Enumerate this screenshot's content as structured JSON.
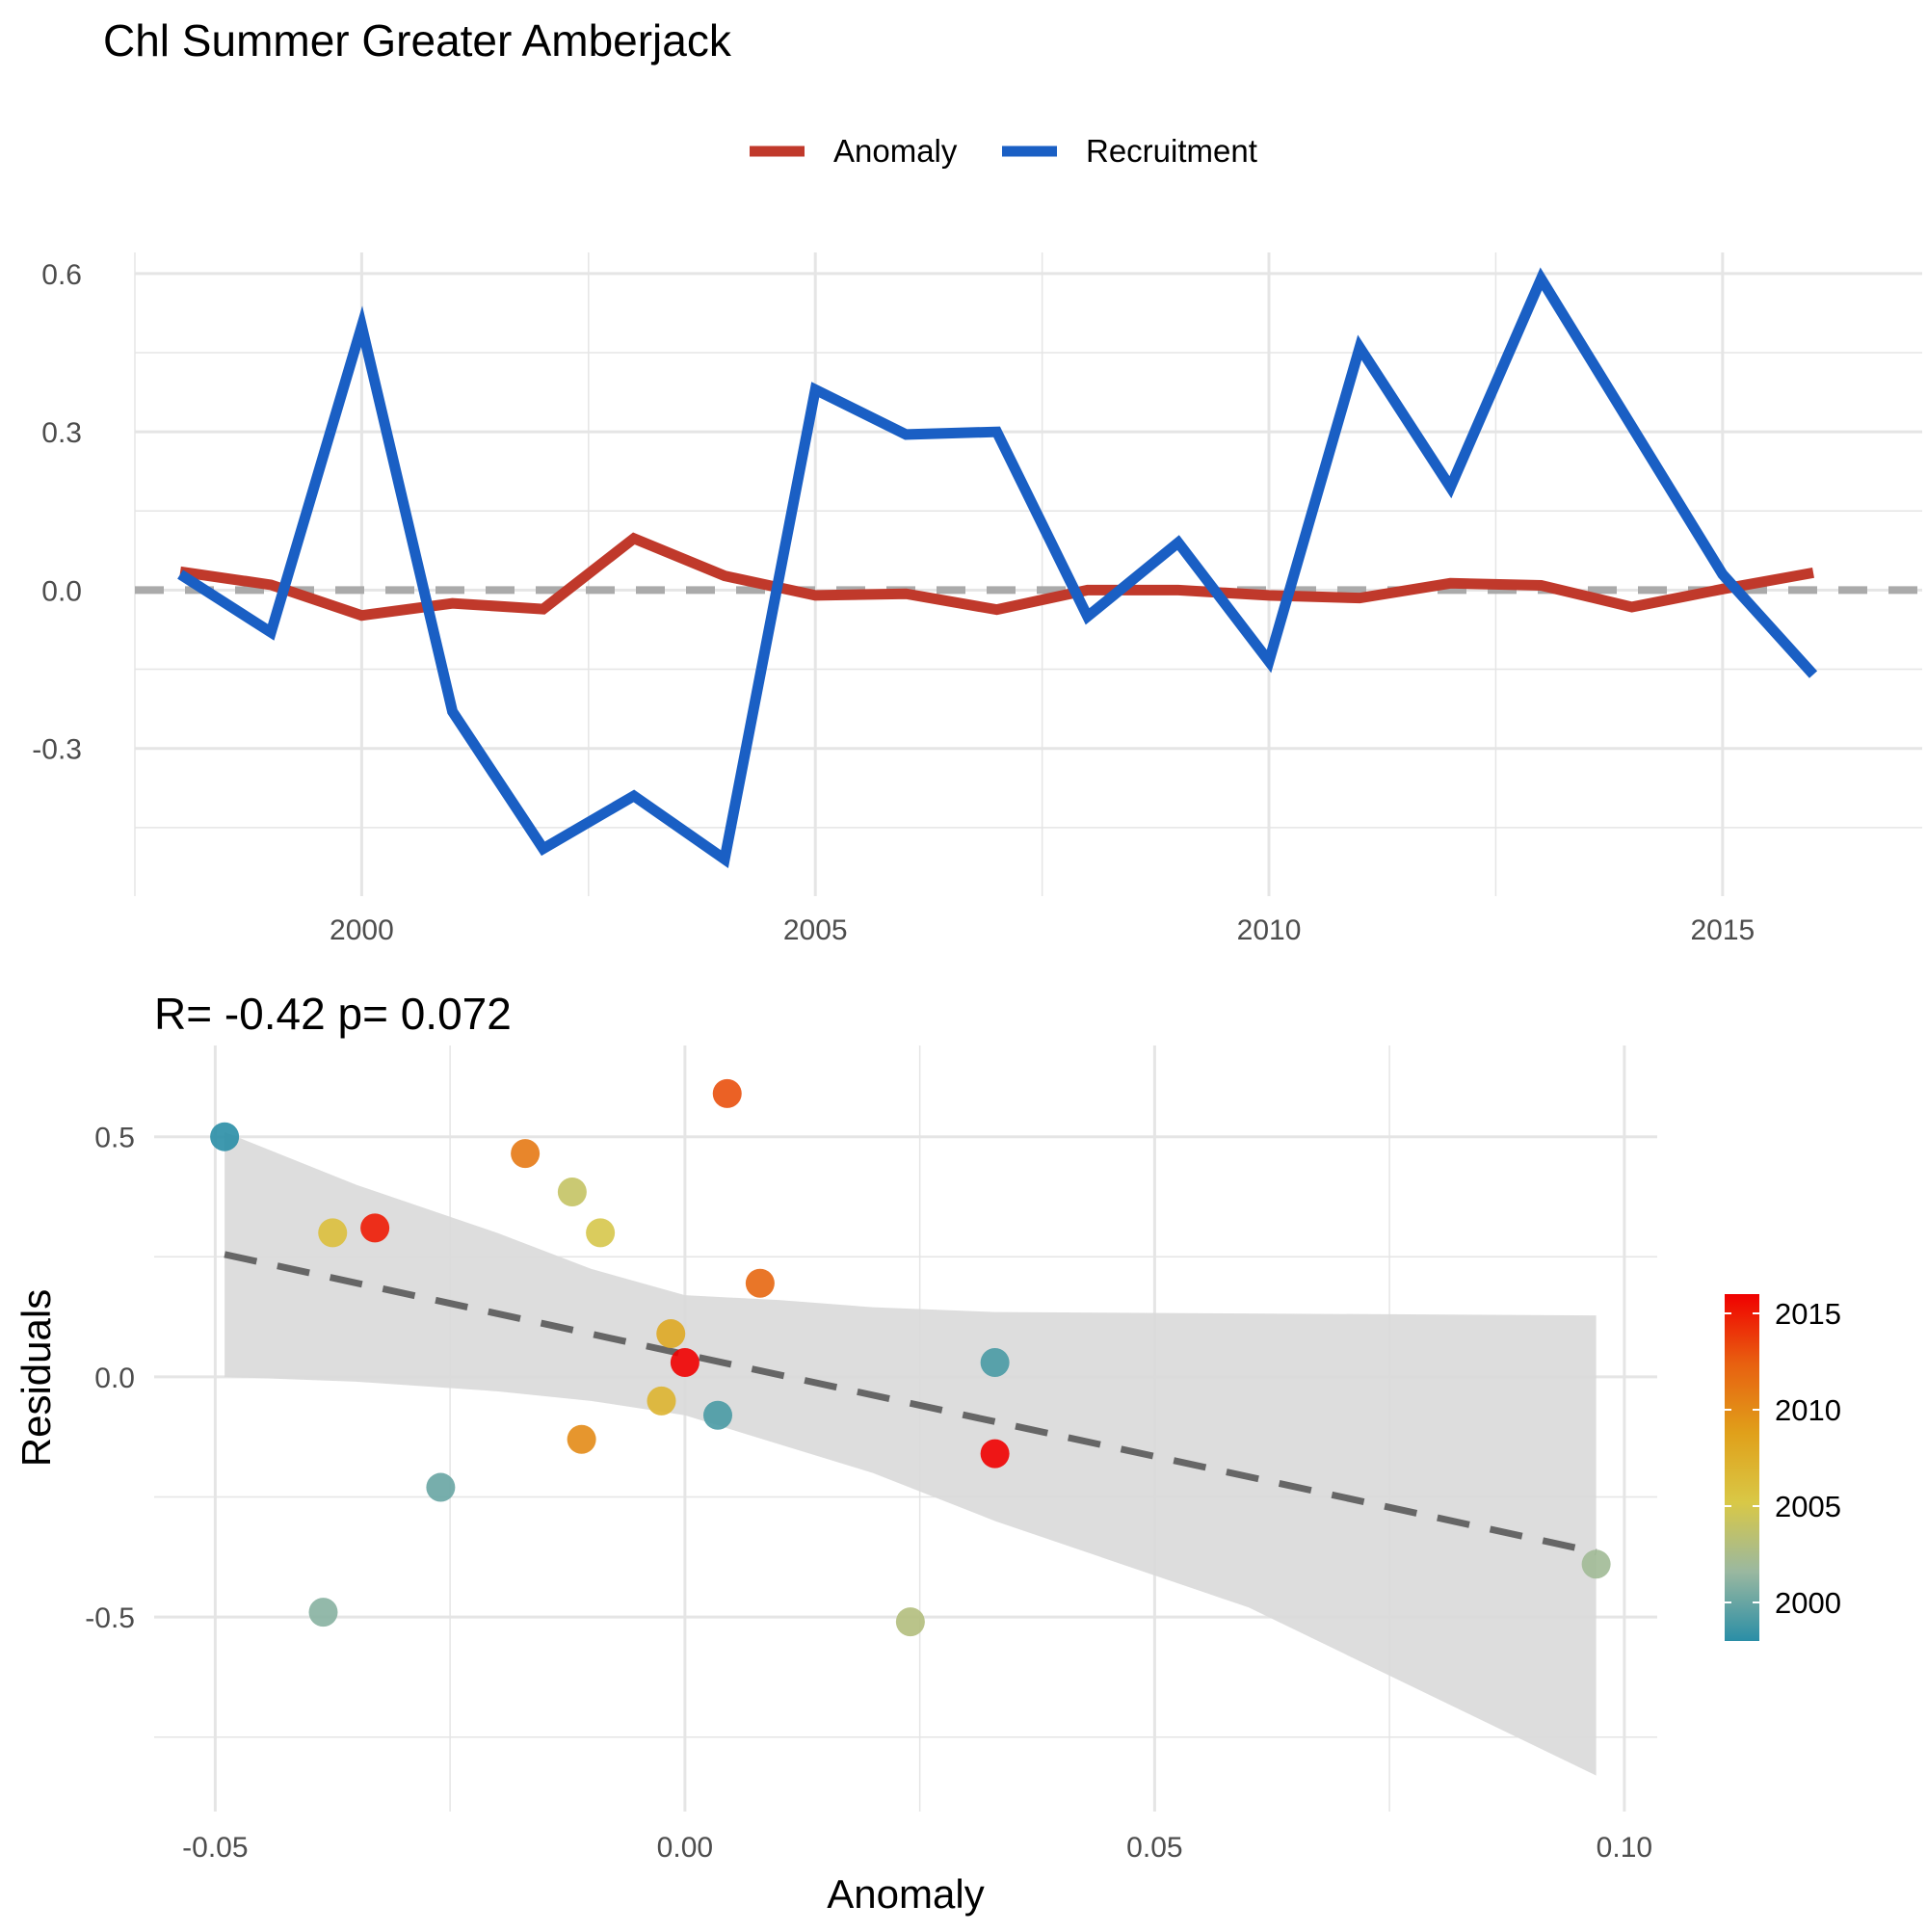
{
  "page_title": "Chl Summer Greater Amberjack",
  "colors": {
    "anomaly": "#c0392b",
    "recruitment": "#1a5fc4",
    "zero_line": "#aaaaaa",
    "regression_line": "#666666",
    "ci_band": "#d9d9d9",
    "grid": "#e5e5e5",
    "year_scale": [
      "#2a8ea6",
      "#9ab8a0",
      "#d9c846",
      "#e0a01a",
      "#e86010",
      "#f00000"
    ]
  },
  "chart_data": [
    {
      "type": "line",
      "title": "",
      "xlabel": "",
      "ylabel": "",
      "xlim": [
        1997.5,
        2017.2
      ],
      "ylim": [
        -0.58,
        0.64
      ],
      "x_ticks": [
        2000,
        2005,
        2010,
        2015
      ],
      "x_tick_labels": [
        "2000",
        "2005",
        "2010",
        "2015"
      ],
      "y_ticks": [
        -0.3,
        0.0,
        0.3,
        0.6
      ],
      "y_tick_labels": [
        "-0.3",
        "0.0",
        "0.3",
        "0.6"
      ],
      "legend": {
        "position": "top",
        "entries": [
          "Anomaly",
          "Recruitment"
        ]
      },
      "grid": true,
      "reference_line": {
        "y": 0,
        "style": "dashed"
      },
      "x": [
        1998,
        1999,
        2000,
        2001,
        2002,
        2003,
        2004,
        2005,
        2006,
        2007,
        2008,
        2009,
        2010,
        2011,
        2012,
        2013,
        2014,
        2015,
        2016
      ],
      "series": [
        {
          "name": "Anomaly",
          "values": [
            0.035,
            0.01,
            -0.048,
            -0.025,
            -0.036,
            0.098,
            0.027,
            -0.01,
            -0.007,
            -0.037,
            0.0,
            0.0,
            -0.01,
            -0.015,
            0.013,
            0.009,
            -0.032,
            0.002,
            0.033
          ]
        },
        {
          "name": "Recruitment",
          "values": [
            0.03,
            -0.08,
            0.5,
            -0.23,
            -0.49,
            -0.39,
            -0.51,
            0.38,
            0.295,
            0.3,
            -0.05,
            0.09,
            -0.135,
            0.46,
            0.195,
            0.59,
            0.31,
            0.03,
            -0.16
          ]
        }
      ]
    },
    {
      "type": "scatter",
      "title": "R= -0.42  p= 0.072",
      "xlabel": "Anomaly",
      "ylabel": "Residuals",
      "xlim": [
        -0.0565,
        0.1035
      ],
      "ylim": [
        -0.905,
        0.69
      ],
      "x_ticks": [
        -0.05,
        0.0,
        0.05,
        0.1
      ],
      "x_tick_labels": [
        "-0.05",
        "0.00",
        "0.05",
        "0.10"
      ],
      "y_ticks": [
        -0.5,
        0.0,
        0.5
      ],
      "y_tick_labels": [
        "-0.5",
        "0.0",
        "0.5"
      ],
      "grid": true,
      "points": [
        {
          "x": -0.049,
          "y": 0.5,
          "year": 1998
        },
        {
          "x": -0.0385,
          "y": -0.49,
          "year": 2001
        },
        {
          "x": -0.0375,
          "y": 0.3,
          "year": 2006
        },
        {
          "x": -0.033,
          "y": 0.31,
          "year": 2015
        },
        {
          "x": -0.026,
          "y": -0.23,
          "year": 2000
        },
        {
          "x": -0.017,
          "y": 0.465,
          "year": 2011
        },
        {
          "x": -0.012,
          "y": 0.385,
          "year": 2004
        },
        {
          "x": -0.011,
          "y": -0.13,
          "year": 2010
        },
        {
          "x": -0.009,
          "y": 0.3,
          "year": 2005
        },
        {
          "x": -0.0025,
          "y": -0.05,
          "year": 2007
        },
        {
          "x": -0.0015,
          "y": 0.09,
          "year": 2008
        },
        {
          "x": 0.0,
          "y": 0.03,
          "year": 2016
        },
        {
          "x": 0.0035,
          "y": -0.08,
          "year": 1999
        },
        {
          "x": 0.0045,
          "y": 0.59,
          "year": 2013
        },
        {
          "x": 0.008,
          "y": 0.195,
          "year": 2012
        },
        {
          "x": 0.024,
          "y": -0.51,
          "year": 2003
        },
        {
          "x": 0.033,
          "y": -0.16,
          "year": 2016
        },
        {
          "x": 0.033,
          "y": 0.03,
          "year": 1999
        },
        {
          "x": 0.097,
          "y": -0.39,
          "year": 2002
        }
      ],
      "regression": {
        "x": [
          -0.049,
          0.097
        ],
        "y": [
          0.255,
          -0.365
        ]
      },
      "ci_band": {
        "x": [
          -0.049,
          -0.035,
          -0.02,
          -0.01,
          0.0,
          0.01,
          0.02,
          0.033,
          0.06,
          0.097
        ],
        "upper": [
          0.51,
          0.4,
          0.3,
          0.225,
          0.17,
          0.16,
          0.145,
          0.135,
          0.132,
          0.128
        ],
        "lower": [
          0.0,
          -0.01,
          -0.03,
          -0.05,
          -0.08,
          -0.14,
          -0.2,
          -0.3,
          -0.48,
          -0.83
        ]
      },
      "colorbar": {
        "range": [
          1998,
          2016
        ],
        "ticks": [
          2000,
          2005,
          2010,
          2015
        ],
        "tick_labels": [
          "2000",
          "2005",
          "2010",
          "2015"
        ]
      }
    }
  ]
}
